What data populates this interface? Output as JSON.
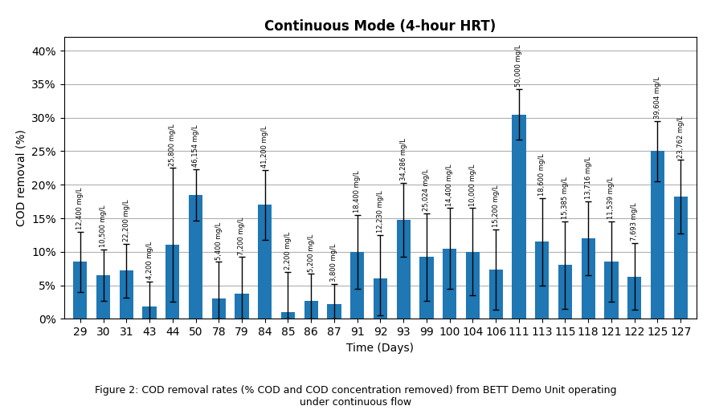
{
  "chart_data": {
    "type": "bar",
    "title": "Continuous Mode (4-hour HRT)",
    "xlabel": "Time (Days)",
    "ylabel": "COD removal (%)",
    "categories": [
      "29",
      "30",
      "31",
      "43",
      "44",
      "50",
      "78",
      "79",
      "84",
      "85",
      "86",
      "87",
      "91",
      "92",
      "93",
      "99",
      "100",
      "104",
      "106",
      "111",
      "113",
      "115",
      "118",
      "121",
      "122",
      "125",
      "127"
    ],
    "values": [
      0.085,
      0.065,
      0.072,
      0.018,
      0.11,
      0.185,
      0.03,
      0.037,
      0.17,
      0.01,
      0.027,
      0.022,
      0.1,
      0.06,
      0.148,
      0.092,
      0.105,
      0.1,
      0.073,
      0.305,
      0.115,
      0.08,
      0.12,
      0.085,
      0.063,
      0.25,
      0.182
    ],
    "errors_upper": [
      0.045,
      0.038,
      0.04,
      0.038,
      0.115,
      0.038,
      0.055,
      0.055,
      0.052,
      0.06,
      0.04,
      0.03,
      0.055,
      0.065,
      0.055,
      0.065,
      0.06,
      0.065,
      0.06,
      0.038,
      0.065,
      0.065,
      0.055,
      0.06,
      0.05,
      0.045,
      0.055
    ],
    "errors_lower": [
      0.045,
      0.038,
      0.04,
      0.018,
      0.085,
      0.038,
      0.03,
      0.037,
      0.052,
      0.01,
      0.027,
      0.022,
      0.055,
      0.055,
      0.055,
      0.065,
      0.06,
      0.065,
      0.06,
      0.038,
      0.065,
      0.065,
      0.055,
      0.06,
      0.05,
      0.045,
      0.055
    ],
    "annotations": [
      "12,400 mg/L",
      "10,500 mg/L",
      "22,200 mg/L",
      "4,200 mg/L",
      "25,800 mg/L",
      "46,154 mg/L",
      "5,400 mg/L",
      "7,200 mg/L",
      "41,200 mg/L",
      "2,200 mg/L",
      "5,200 mg/L",
      "3,800 mg/L",
      "18,400 mg/L",
      "12,230 mg/L",
      "34,286 mg/L",
      "25,024 mg/L",
      "14,400 mg/L",
      "10,000 mg/L",
      "15,200 mg/L",
      "50,000 mg/L",
      "18,600 mg/L",
      "15,385 mg/L",
      "13,716 mg/L",
      "11,539 mg/L",
      "7,693 mg/L",
      "39,604 mg/L",
      "23,762 mg/L"
    ],
    "caption": "Figure 2: COD removal rates (% COD and COD concentration removed) from BETT Demo Unit operating\nunder continuous flow",
    "ylim": [
      0,
      0.42
    ],
    "yticks": [
      {
        "value": 0.0,
        "label": "0%"
      },
      {
        "value": 0.05,
        "label": "5%"
      },
      {
        "value": 0.1,
        "label": "10%"
      },
      {
        "value": 0.15,
        "label": "15%"
      },
      {
        "value": 0.2,
        "label": "20%"
      },
      {
        "value": 0.25,
        "label": "25%"
      },
      {
        "value": 0.3,
        "label": "30%"
      },
      {
        "value": 0.35,
        "label": "35%"
      },
      {
        "value": 0.4,
        "label": "40%"
      }
    ],
    "grid": true
  }
}
